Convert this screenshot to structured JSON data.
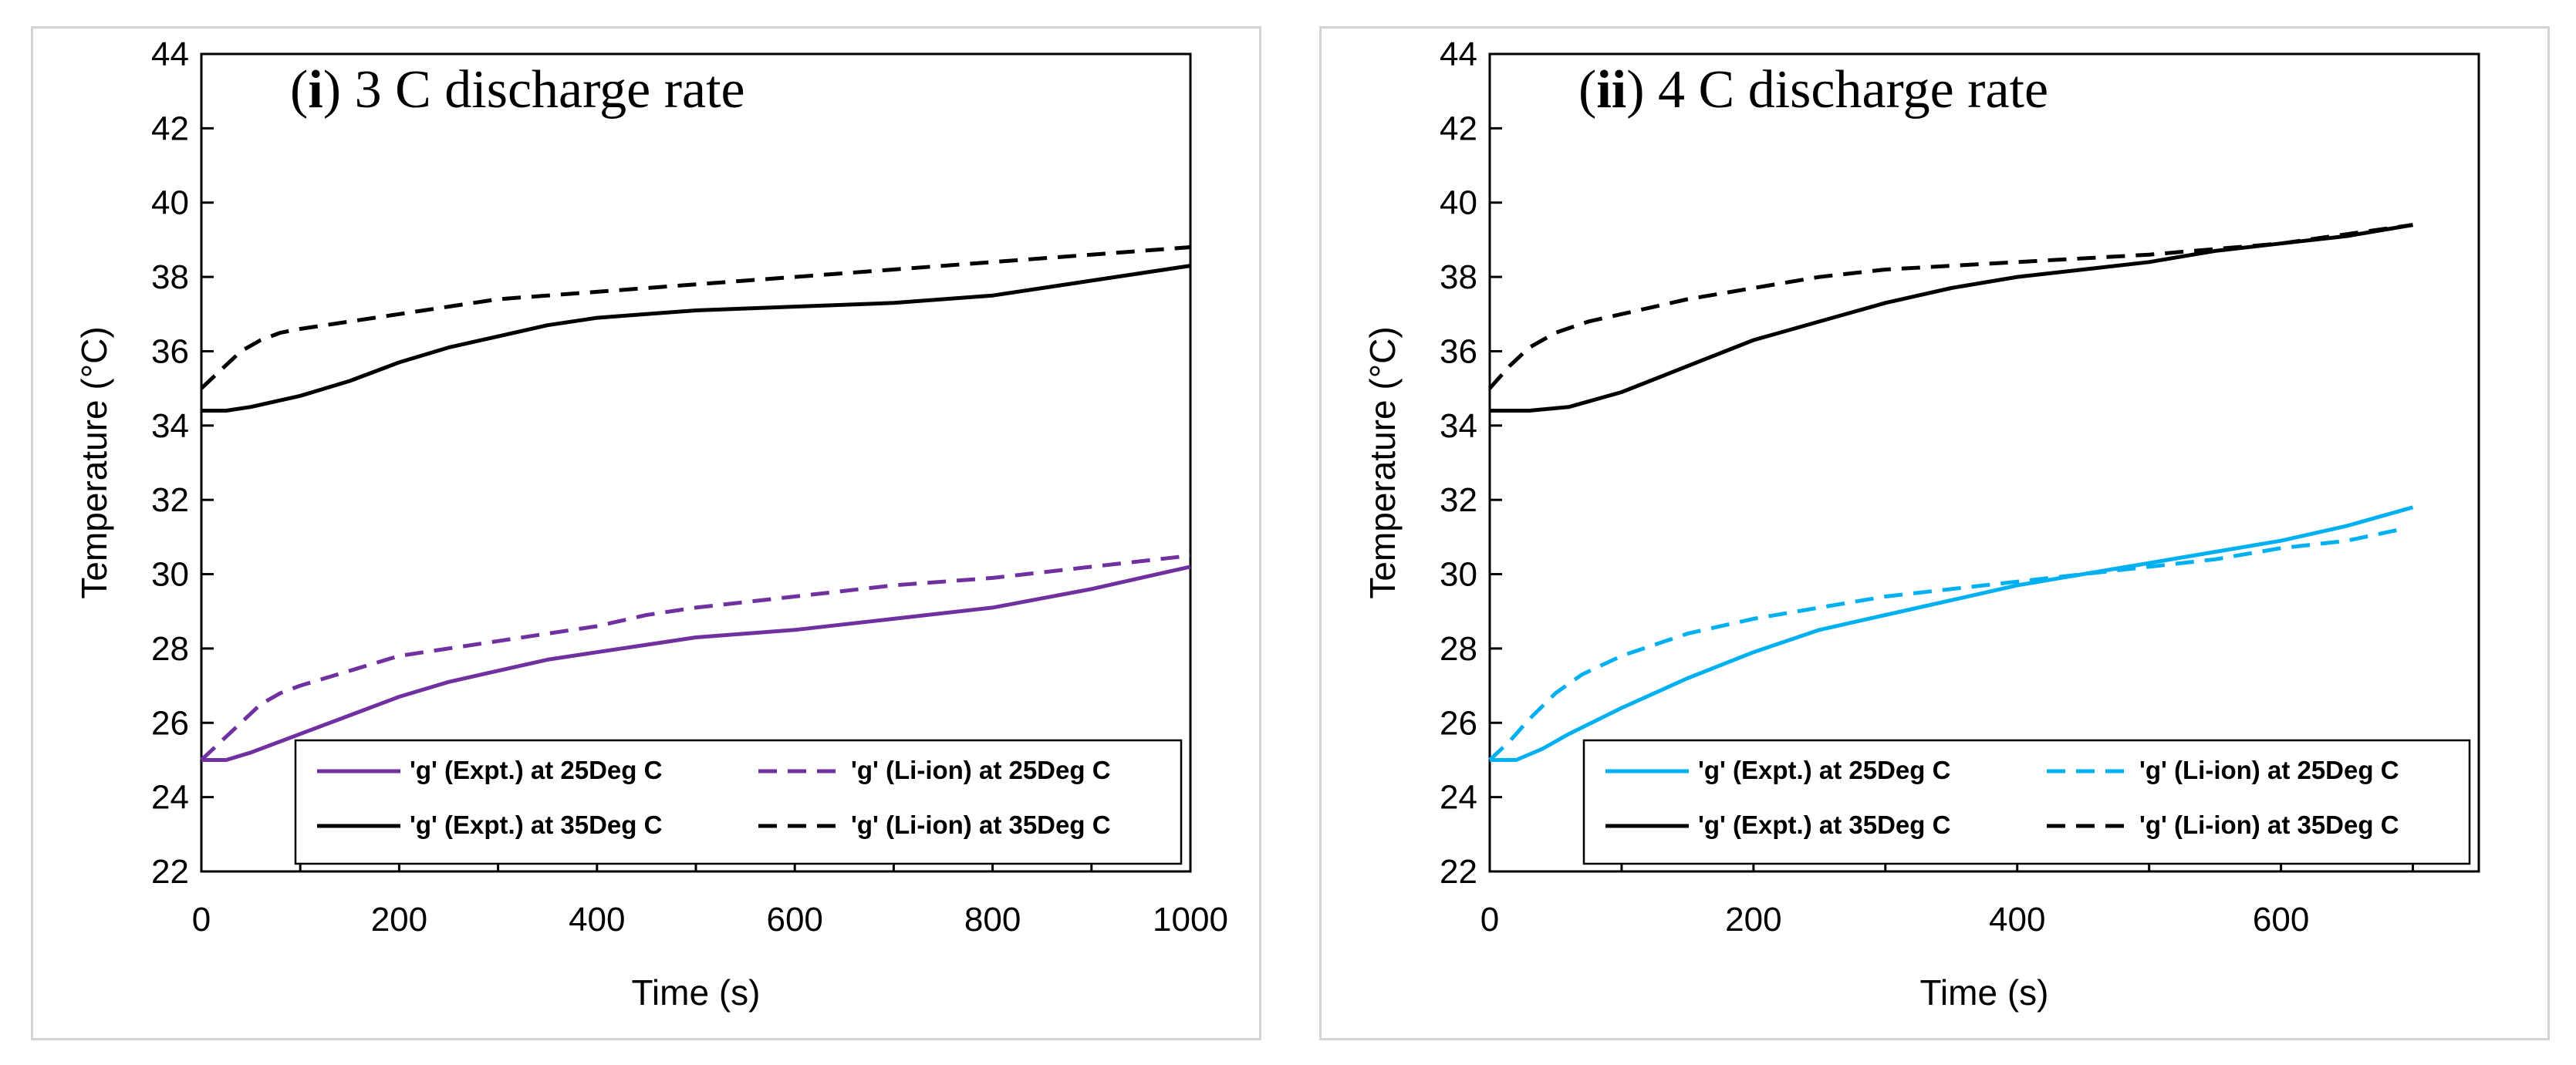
{
  "chart_data": [
    {
      "type": "line",
      "title_label": "i",
      "title_text": "3 C discharge rate",
      "xlabel": "Time (s)",
      "ylabel": "Temperature (°C)",
      "xlim": [
        0,
        1000
      ],
      "ylim": [
        22,
        44
      ],
      "xticks": [
        0,
        200,
        400,
        600,
        800,
        1000
      ],
      "yticks": [
        22,
        24,
        26,
        28,
        30,
        32,
        34,
        36,
        38,
        40,
        42,
        44
      ],
      "legend_position": "bottom-right",
      "series": [
        {
          "name": "'g' (Expt.) at 25Deg C",
          "color": "#7030a0",
          "dash": "solid",
          "x": [
            0,
            25,
            50,
            100,
            150,
            200,
            250,
            300,
            350,
            400,
            450,
            500,
            600,
            700,
            800,
            900,
            1000
          ],
          "y": [
            25.0,
            25.0,
            25.2,
            25.7,
            26.2,
            26.7,
            27.1,
            27.4,
            27.7,
            27.9,
            28.1,
            28.3,
            28.5,
            28.8,
            29.1,
            29.6,
            30.2
          ]
        },
        {
          "name": "'g' (Li-ion) at 25Deg C",
          "color": "#7030a0",
          "dash": "dashed",
          "x": [
            0,
            20,
            40,
            60,
            80,
            100,
            150,
            200,
            250,
            300,
            350,
            400,
            450,
            500,
            600,
            700,
            800,
            900,
            1000
          ],
          "y": [
            25.0,
            25.5,
            26.0,
            26.5,
            26.8,
            27.0,
            27.4,
            27.8,
            28.0,
            28.2,
            28.4,
            28.6,
            28.9,
            29.1,
            29.4,
            29.7,
            29.9,
            30.2,
            30.5
          ]
        },
        {
          "name": "'g' (Expt.) at 35Deg C",
          "color": "#000000",
          "dash": "solid",
          "x": [
            0,
            25,
            50,
            100,
            150,
            200,
            250,
            300,
            350,
            400,
            450,
            500,
            600,
            700,
            800,
            900,
            1000
          ],
          "y": [
            34.4,
            34.4,
            34.5,
            34.8,
            35.2,
            35.7,
            36.1,
            36.4,
            36.7,
            36.9,
            37.0,
            37.1,
            37.2,
            37.3,
            37.5,
            37.9,
            38.3
          ]
        },
        {
          "name": "'g' (Li-ion) at 35Deg C",
          "color": "#000000",
          "dash": "dashed",
          "x": [
            0,
            20,
            40,
            60,
            80,
            100,
            150,
            200,
            250,
            300,
            400,
            500,
            600,
            700,
            800,
            900,
            1000
          ],
          "y": [
            35.0,
            35.5,
            36.0,
            36.3,
            36.5,
            36.6,
            36.8,
            37.0,
            37.2,
            37.4,
            37.6,
            37.8,
            38.0,
            38.2,
            38.4,
            38.6,
            38.8
          ]
        }
      ]
    },
    {
      "type": "line",
      "title_label": "ii",
      "title_text": "4 C discharge rate",
      "xlabel": "Time (s)",
      "ylabel": "Temperature (°C)",
      "xlim": [
        0,
        750
      ],
      "ylim": [
        22,
        44
      ],
      "xticks": [
        0,
        200,
        400,
        600
      ],
      "yticks": [
        22,
        24,
        26,
        28,
        30,
        32,
        34,
        36,
        38,
        40,
        42,
        44
      ],
      "legend_position": "bottom-right",
      "series": [
        {
          "name": "'g' (Expt.) at 25Deg C",
          "color": "#00b0f0",
          "dash": "solid",
          "x": [
            0,
            20,
            40,
            60,
            100,
            150,
            200,
            250,
            300,
            350,
            400,
            450,
            500,
            550,
            600,
            650,
            700
          ],
          "y": [
            25.0,
            25.0,
            25.3,
            25.7,
            26.4,
            27.2,
            27.9,
            28.5,
            28.9,
            29.3,
            29.7,
            30.0,
            30.3,
            30.6,
            30.9,
            31.3,
            31.8
          ]
        },
        {
          "name": "'g' (Li-ion) at 25Deg C",
          "color": "#00b0f0",
          "dash": "dashed",
          "x": [
            0,
            15,
            30,
            50,
            70,
            100,
            150,
            200,
            250,
            300,
            350,
            400,
            450,
            500,
            550,
            600,
            650,
            690
          ],
          "y": [
            25.0,
            25.5,
            26.1,
            26.8,
            27.3,
            27.8,
            28.4,
            28.8,
            29.1,
            29.4,
            29.6,
            29.8,
            30.0,
            30.2,
            30.4,
            30.7,
            30.9,
            31.2
          ]
        },
        {
          "name": "'g' (Expt.) at 35Deg C",
          "color": "#000000",
          "dash": "solid",
          "x": [
            0,
            30,
            60,
            100,
            150,
            200,
            250,
            300,
            350,
            400,
            450,
            500,
            550,
            600,
            650,
            700
          ],
          "y": [
            34.4,
            34.4,
            34.5,
            34.9,
            35.6,
            36.3,
            36.8,
            37.3,
            37.7,
            38.0,
            38.2,
            38.4,
            38.7,
            38.9,
            39.1,
            39.4
          ]
        },
        {
          "name": "'g' (Li-ion) at 35Deg C",
          "color": "#000000",
          "dash": "dashed",
          "x": [
            0,
            15,
            30,
            50,
            75,
            100,
            150,
            200,
            250,
            300,
            400,
            500,
            600,
            700
          ],
          "y": [
            35.0,
            35.6,
            36.1,
            36.5,
            36.8,
            37.0,
            37.4,
            37.7,
            38.0,
            38.2,
            38.4,
            38.6,
            38.9,
            39.4
          ]
        }
      ]
    }
  ]
}
